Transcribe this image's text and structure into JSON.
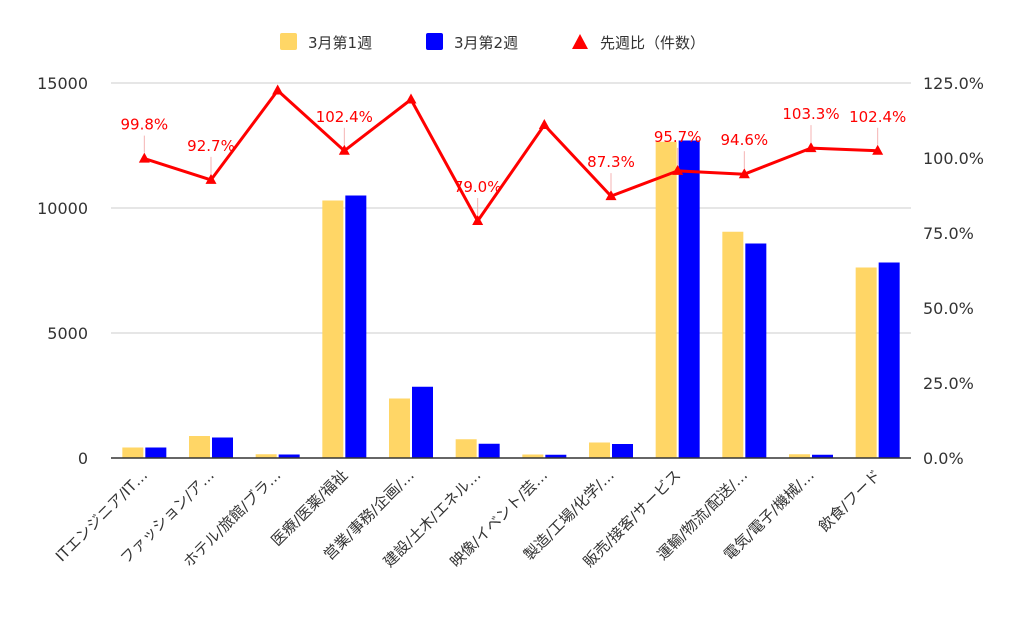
{
  "chart_data": {
    "type": "bar",
    "categories": [
      "ITエンジニア/IT…",
      "ファッション/ア…",
      "ホテル/旅館/ブラ…",
      "医療/医薬/福祉",
      "営業/事務/企画/…",
      "建設/土木/エネル…",
      "映像/イベント/芸…",
      "製造/工場/化学/…",
      "販売/接客/サービス",
      "運輸/物流/配送/…",
      "電気/電子/機械/…",
      "飲食/フード"
    ],
    "series": [
      {
        "name": "3月第1週",
        "type": "bar",
        "axis": "left",
        "color": "#ffd666",
        "values": [
          420,
          880,
          150,
          10300,
          2380,
          750,
          140,
          620,
          12650,
          9050,
          150,
          7620
        ]
      },
      {
        "name": "3月第2週",
        "type": "bar",
        "axis": "left",
        "color": "#0000ff",
        "values": [
          420,
          820,
          140,
          10500,
          2850,
          570,
          130,
          560,
          12700,
          8580,
          130,
          7820
        ]
      },
      {
        "name": "先週比（件数）",
        "type": "line",
        "axis": "right",
        "color": "#ff0000",
        "marker": "triangle",
        "values": [
          99.8,
          92.7,
          122.5,
          102.4,
          119.5,
          79.0,
          111.0,
          87.3,
          95.7,
          94.6,
          103.3,
          102.4
        ],
        "labels": [
          "99.8%",
          "92.7%",
          "",
          "102.4%",
          "",
          "79.0%",
          "",
          "87.3%",
          "95.7%",
          "94.6%",
          "103.3%",
          "102.4%"
        ]
      }
    ],
    "y_left": {
      "ylim": [
        0,
        15000
      ],
      "ticks": [
        "0",
        "5000",
        "10000",
        "15000"
      ],
      "tick_values": [
        0,
        5000,
        10000,
        15000
      ]
    },
    "y_right": {
      "ylim": [
        0,
        125
      ],
      "ticks": [
        "0.0%",
        "25.0%",
        "50.0%",
        "75.0%",
        "100.0%",
        "125.0%"
      ],
      "tick_values": [
        0,
        25,
        50,
        75,
        100,
        125
      ]
    },
    "grid": true,
    "legend_position": "top-center",
    "title": "",
    "xlabel": "",
    "ylabel": ""
  }
}
